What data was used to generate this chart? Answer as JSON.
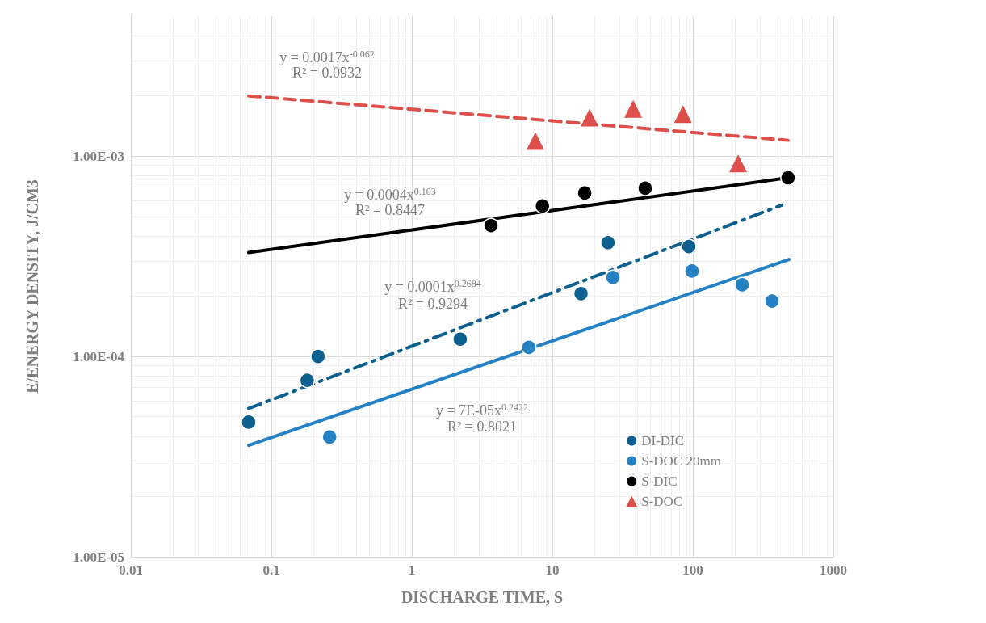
{
  "chart_data": {
    "type": "scatter",
    "xlabel": "DISCHARGE TIME, S",
    "ylabel": "E/ENERGY DENSITY, J/CM3",
    "log": "xy",
    "grid": true,
    "legend": "bottom right",
    "xlim": [
      0.01,
      1000
    ],
    "xticks": [
      0.01,
      0.1,
      1,
      10,
      100,
      1000
    ],
    "ylim": [
      1e-05,
      0.005
    ],
    "yticks": [
      {
        "value": 1e-05,
        "label": "1.00E-05"
      },
      {
        "value": 0.0001,
        "label": "1.00E-04"
      },
      {
        "value": 0.001,
        "label": "1.00E-03"
      }
    ],
    "series": [
      {
        "name": "DI-DIC",
        "marker": "circle",
        "color": "#0d5f8f",
        "x": [
          0.069,
          0.18,
          0.215,
          2.21,
          16,
          24.9,
          93.6
        ],
        "values": [
          4.7e-05,
          7.6e-05,
          0.0001,
          0.000122,
          0.000206,
          0.00037,
          0.000354
        ]
      },
      {
        "name": "S-DOC 20mm",
        "marker": "circle",
        "color": "#2381c4",
        "x": [
          0.26,
          6.8,
          27,
          98.6,
          224,
          366
        ],
        "values": [
          3.96e-05,
          0.000111,
          0.000248,
          0.000267,
          0.000228,
          0.000189
        ]
      },
      {
        "name": "S-DIC",
        "marker": "circle",
        "color": "#000000",
        "x": [
          3.66,
          8.5,
          17,
          45.8,
          476
        ],
        "values": [
          0.00045,
          0.000564,
          0.000655,
          0.000692,
          0.00078
        ]
      },
      {
        "name": "S-DOC",
        "marker": "triangle",
        "color": "#dd4f4a",
        "x": [
          7.57,
          18.4,
          37.6,
          85,
          210
        ],
        "values": [
          0.00119,
          0.00156,
          0.00172,
          0.00162,
          0.00092
        ]
      },
      {
        "type": "line",
        "marker": "none",
        "line_style": "dashed",
        "color": "#dd4f4a",
        "x": [
          0.069,
          476
        ],
        "values": [
          0.002,
          0.0012
        ]
      },
      {
        "type": "line",
        "marker": "none",
        "line_style": "solid",
        "color": "#000000",
        "x": [
          0.069,
          476
        ],
        "values": [
          0.00033,
          0.00078
        ]
      },
      {
        "type": "line",
        "marker": "none",
        "line_style": "dashdot",
        "color": "#0d5f8f",
        "x": [
          0.069,
          430
        ],
        "values": [
          5.5e-05,
          0.00057
        ]
      },
      {
        "type": "line",
        "marker": "none",
        "line_style": "solid",
        "color": "#2381c4",
        "x": [
          0.069,
          483
        ],
        "values": [
          3.6e-05,
          0.000305
        ]
      }
    ],
    "annotations": [
      "y = 0.0017x$^{-0.062}$",
      "R² = 0.0932",
      "y = 0.0004x$^{0.103}$",
      "R² = 0.8447",
      "y = 0.0001x$^{0.2684}$",
      "R² = 0.9294",
      "y = 7E-05x$^{0.2422}$",
      "R² = 0.8021"
    ]
  }
}
